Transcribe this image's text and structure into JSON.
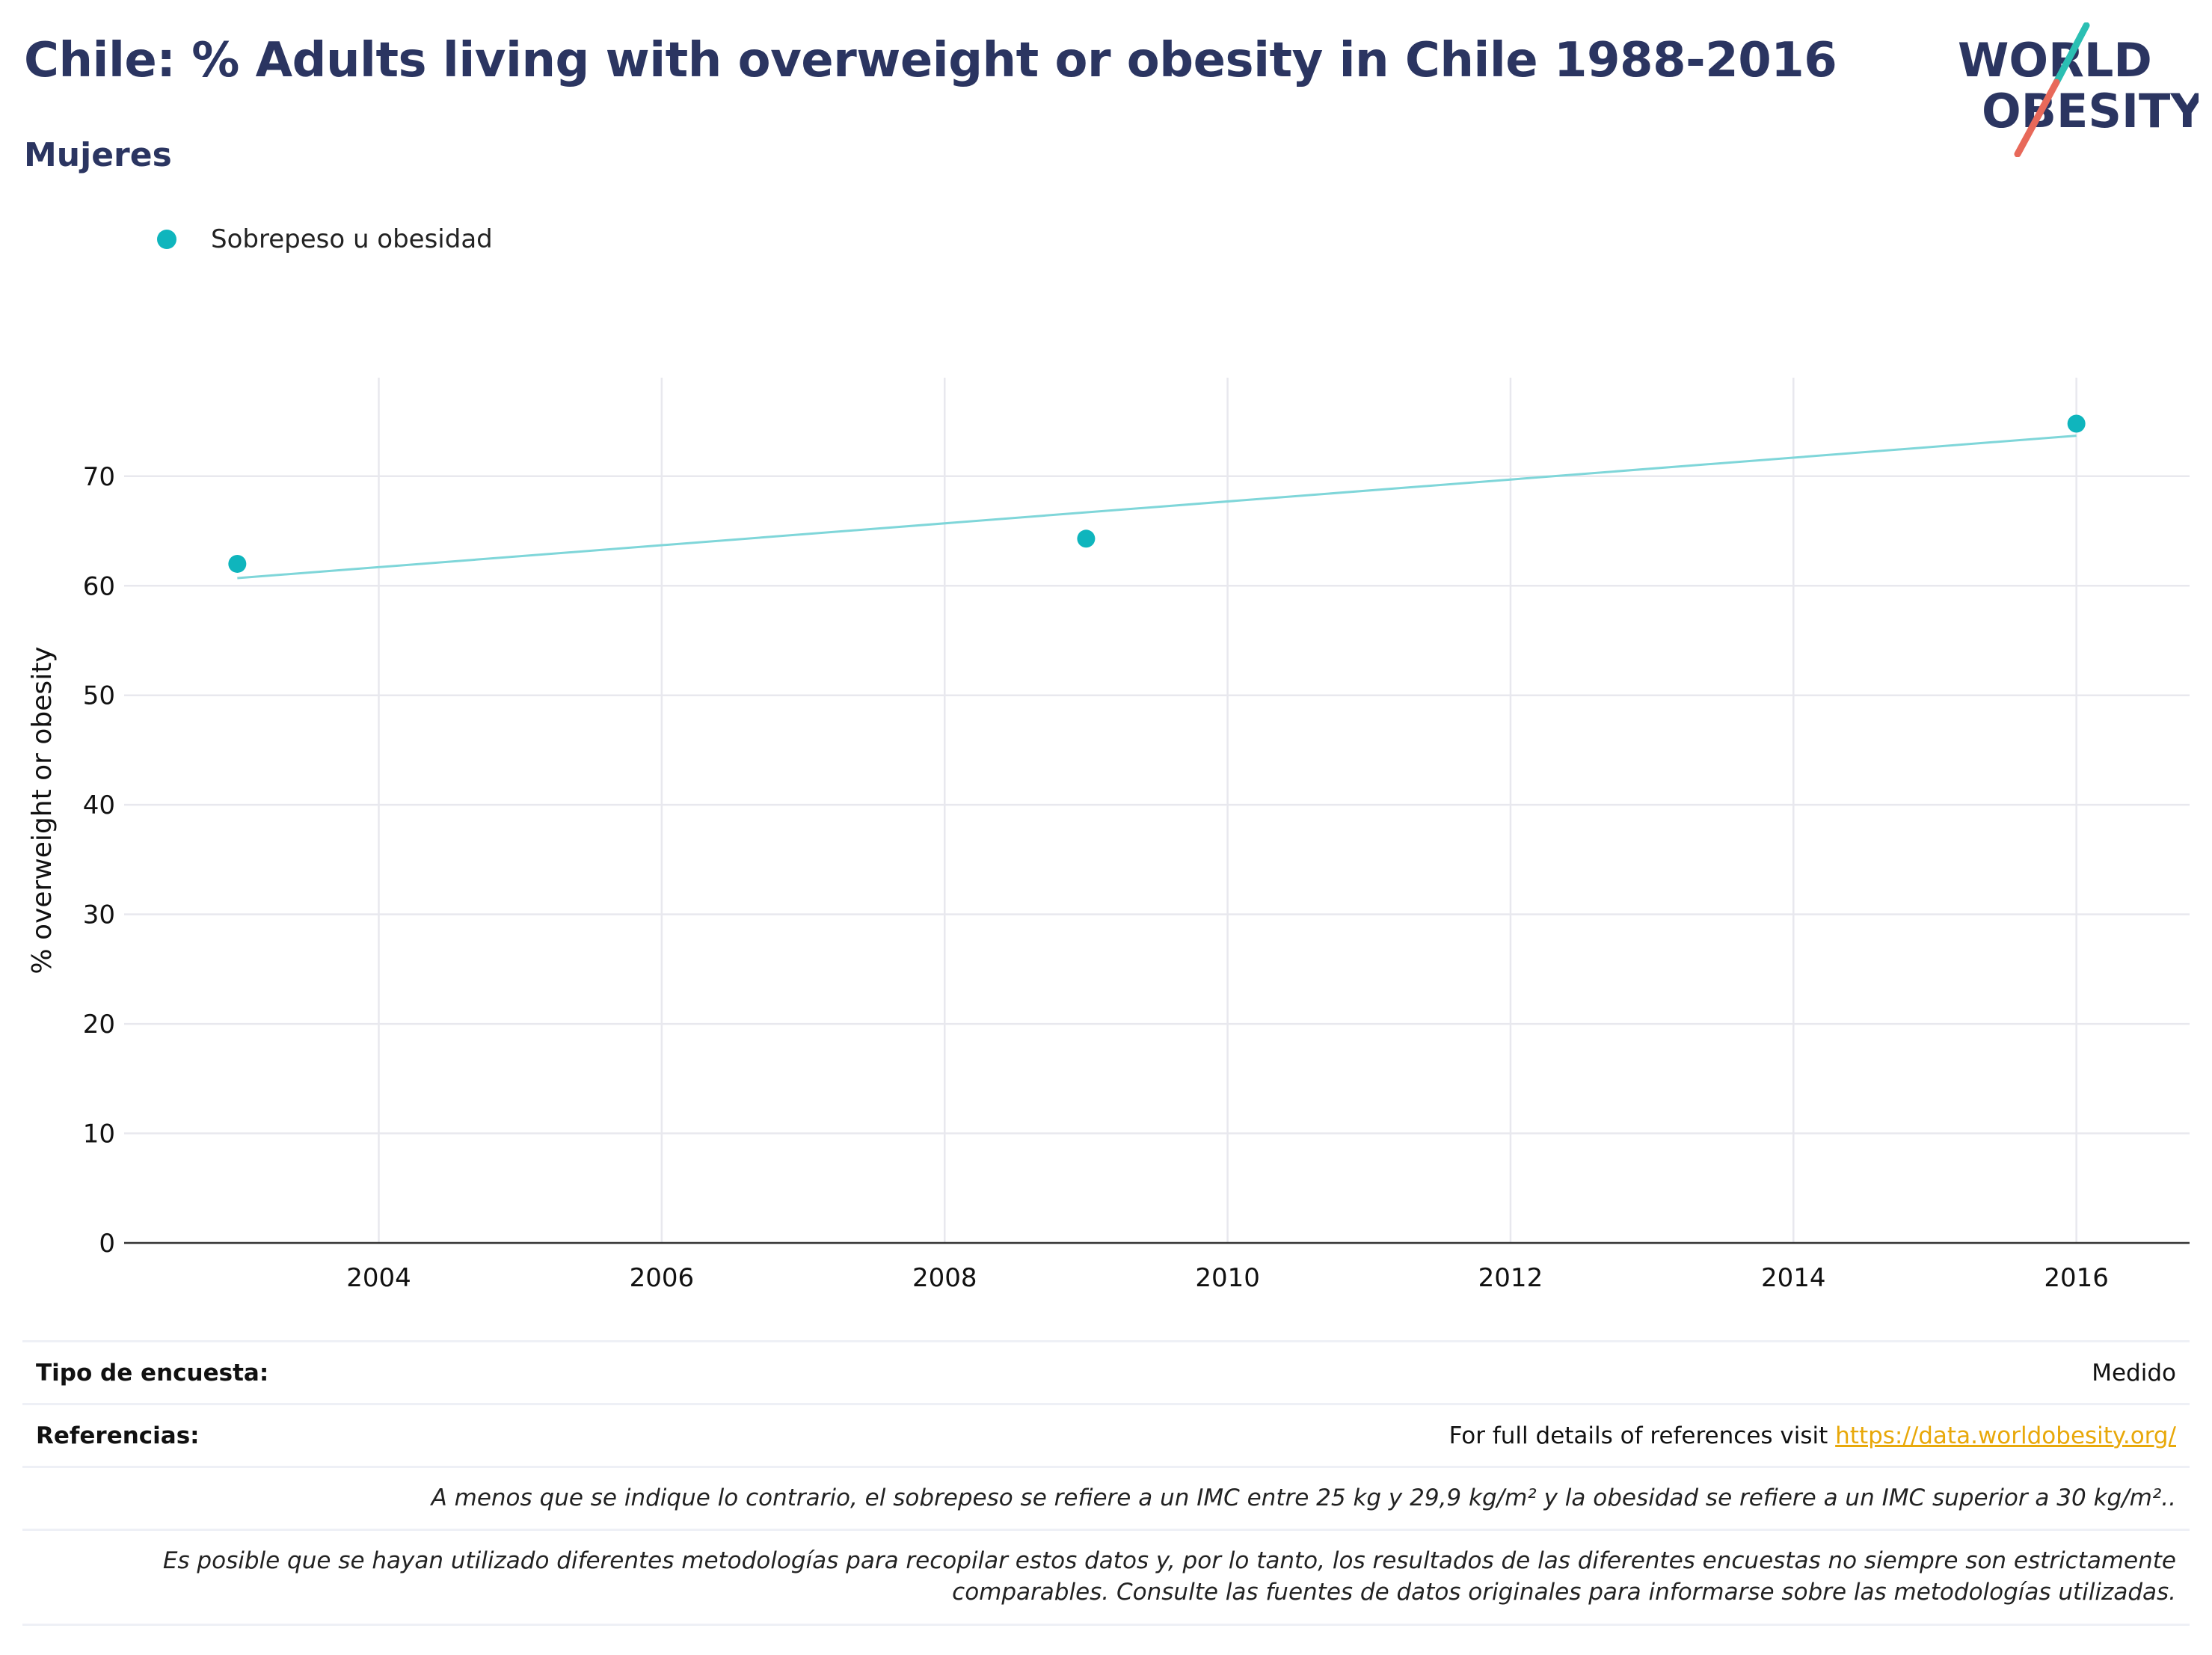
{
  "header": {
    "title": "Chile: % Adults living with overweight or obesity in Chile 1988-2016",
    "subtitle": "Mujeres"
  },
  "logo": {
    "line1": "WORLD",
    "line2": "OBESITY",
    "text_color": "#2b3561",
    "accent_teal": "#2bbfb3",
    "accent_coral": "#e8695a"
  },
  "legend": {
    "label": "Sobrepeso u obesidad",
    "color": "#0fb5bd"
  },
  "chart_data": {
    "type": "scatter",
    "ylabel": "% overweight or obesity",
    "xlabel": "",
    "xlim": [
      2002.2,
      2016.8
    ],
    "ylim": [
      0,
      79
    ],
    "x_ticks": [
      2004,
      2006,
      2008,
      2010,
      2012,
      2014,
      2016
    ],
    "y_ticks": [
      0,
      10,
      20,
      30,
      40,
      50,
      60,
      70
    ],
    "grid": true,
    "legend_position": "top-left",
    "series": [
      {
        "name": "Sobrepeso u obesidad",
        "color": "#0fb5bd",
        "points": [
          {
            "x": 2003,
            "y": 62.0
          },
          {
            "x": 2009,
            "y": 64.3
          },
          {
            "x": 2016,
            "y": 74.8
          }
        ]
      }
    ],
    "trendline": {
      "color": "#7fd6d9",
      "x": [
        2003,
        2016
      ],
      "y": [
        60.7,
        73.7
      ]
    }
  },
  "meta": {
    "survey_label": "Tipo de encuesta:",
    "survey_value": "Medido",
    "references_label": "Referencias:",
    "references_text": "For full details of references visit ",
    "references_link": "https://data.worldobesity.org/",
    "note1": "A menos que se indique lo contrario, el sobrepeso se refiere a un IMC entre 25 kg y 29,9 kg/m² y la obesidad se refiere a un IMC superior a 30 kg/m²..",
    "note2_line1": "Es posible que se hayan utilizado diferentes metodologías para recopilar estos datos y, por lo tanto, los resultados de las diferentes encuestas no siempre son estrictamente",
    "note2_line2": "comparables. Consulte las fuentes de datos originales para informarse sobre las metodologías utilizadas."
  }
}
